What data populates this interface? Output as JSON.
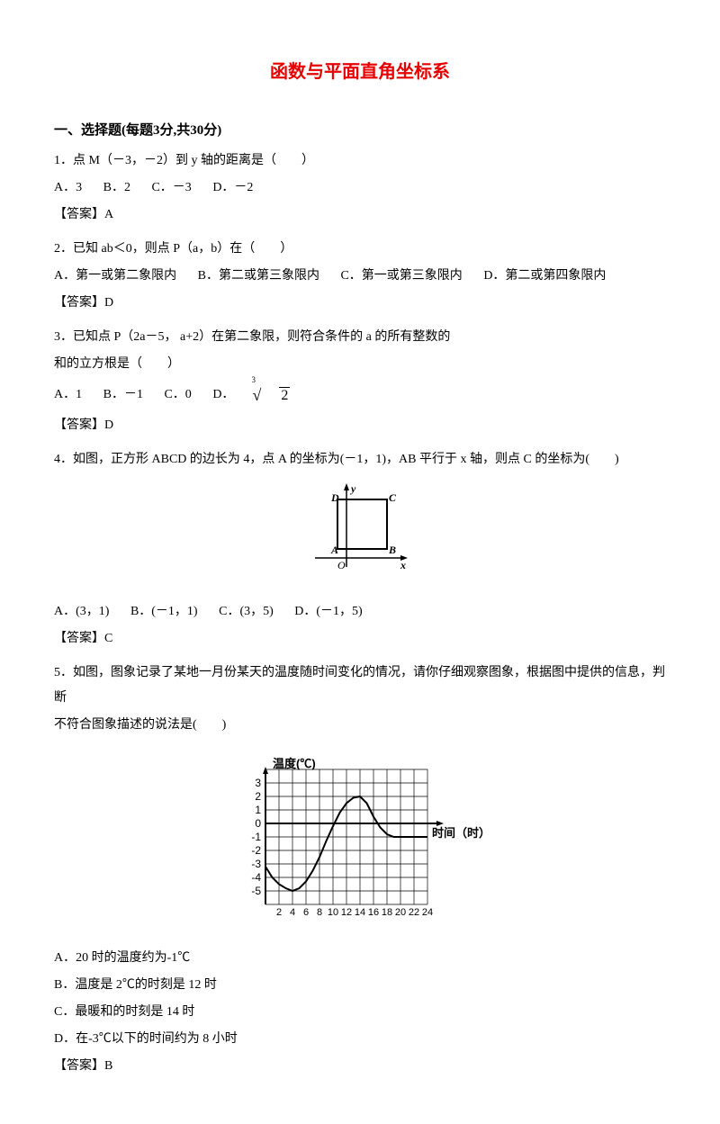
{
  "title": "函数与平面直角坐标系",
  "section_heading": "一、选择题(每题3分,共30分)",
  "q1": {
    "text": "1．点 M（－3，－2）到 y 轴的距离是（　　）",
    "optA": "A．3",
    "optB": "B．2",
    "optC": "C．－3",
    "optD": "D．－2",
    "answer": "【答案】A"
  },
  "q2": {
    "text": "2．已知 ab＜0，则点 P（a，b）在（　　）",
    "optA": "A．第一或第二象限内",
    "optB": "B．第二或第三象限内",
    "optC": "C．第一或第三象限内",
    "optD": "D．第二或第四象限内",
    "answer": "【答案】D"
  },
  "q3": {
    "line1": "3．已知点 P（2a－5， a+2）在第二象限，则符合条件的 a 的所有整数的",
    "line2": "和的立方根是（　　）",
    "optA": "A．1",
    "optB": "B．－1",
    "optC": "C．0",
    "optD_prefix": "D．",
    "optD_radicand": "2",
    "optD_index": "3",
    "answer": "【答案】D"
  },
  "q4": {
    "text": "4．如图，正方形 ABCD 的边长为 4，点 A 的坐标为(－1，1)，AB 平行于 x 轴，则点 C 的坐标为(　　)",
    "optA": "A．(3，1)",
    "optB": "B．(－1，1)",
    "optC": "C．(3，5)",
    "optD": "D．(－1，5)",
    "answer": "【答案】C",
    "figure_labels": {
      "A": "A",
      "B": "B",
      "C": "C",
      "D": "D",
      "O": "O",
      "x": "x",
      "y": "y"
    }
  },
  "q5": {
    "line1": "5．如图，图象记录了某地一月份某天的温度随时间变化的情况，请你仔细观察图象，根据图中提供的信息，判断",
    "line2": "不符合图象描述的说法是(　　)",
    "optA": "A．20 时的温度约为-1℃",
    "optB": "B．温度是 2℃的时刻是 12 时",
    "optC": "C．最暖和的时刻是 14 时",
    "optD": "D．在-3℃以下的时间约为 8 小时",
    "answer": "【答案】B",
    "figure": {
      "ylabel": "温度(℃)",
      "xlabel": "时间（时）",
      "yticks": [
        "3",
        "2",
        "1",
        "0",
        "-1",
        "-2",
        "-3",
        "-4",
        "-5"
      ],
      "xticks": [
        "2",
        "4",
        "6",
        "8",
        "10",
        "12",
        "14",
        "16",
        "18",
        "20",
        "22",
        "24"
      ],
      "curve_points": [
        [
          0,
          -3.2
        ],
        [
          1,
          -4
        ],
        [
          2,
          -4.5
        ],
        [
          3,
          -4.8
        ],
        [
          4,
          -5
        ],
        [
          5,
          -4.8
        ],
        [
          6,
          -4.3
        ],
        [
          7,
          -3.5
        ],
        [
          8,
          -2.5
        ],
        [
          9,
          -1.3
        ],
        [
          10,
          -0.2
        ],
        [
          11,
          0.8
        ],
        [
          12,
          1.5
        ],
        [
          13,
          1.9
        ],
        [
          14,
          2
        ],
        [
          15,
          1.5
        ],
        [
          16,
          0.5
        ],
        [
          17,
          -0.3
        ],
        [
          18,
          -0.8
        ],
        [
          19,
          -1
        ],
        [
          20,
          -1
        ],
        [
          21,
          -1
        ],
        [
          22,
          -1
        ],
        [
          23,
          -1
        ],
        [
          24,
          -1
        ]
      ],
      "grid_color": "#000",
      "bg_color": "#fff",
      "line_color": "#000",
      "line_width": 2,
      "font_size": 12,
      "y_min": -6,
      "y_max": 4,
      "x_min": 0,
      "x_max": 26
    }
  }
}
